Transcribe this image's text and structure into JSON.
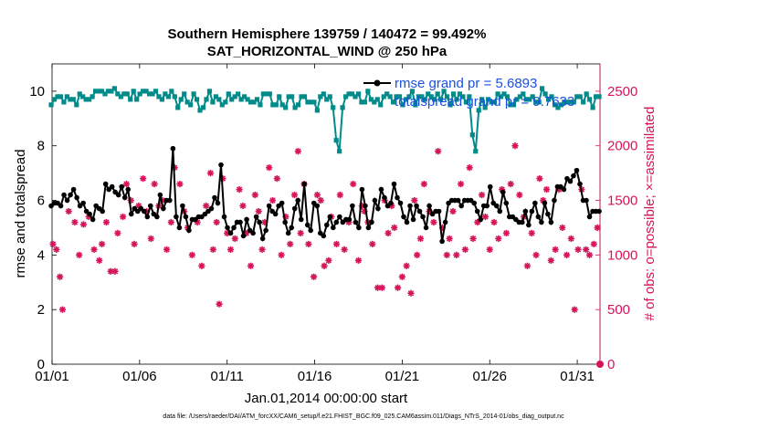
{
  "figure": {
    "title_line1": "Southern Hemisphere 139759 / 140472 = 99.492%",
    "title_line2": "SAT_HORIZONTAL_WIND @ 250 hPa",
    "footer": "data file: /Users/raeder/DAI/ATM_forcXX/CAM6_setup/f.e21.FHIST_BGC.f09_025.CAM6assim.011/Diags_NTrS_2014-01/obs_diag_output.nc"
  },
  "colors": {
    "rmse": "#000000",
    "spread": "#008b8b",
    "obs": "#d6135a",
    "legend_text": "#1a4fe0"
  },
  "chart_data": {
    "type": "line",
    "xlabel": "Jan.01,2014 00:00:00 start",
    "ylabel_left": "rmse and totalspread",
    "ylabel_right": "# of obs: o=possible; ×=assimilated",
    "xlim": [
      1,
      32.3
    ],
    "ylim_left": [
      0,
      11
    ],
    "ylim_right": [
      0,
      2750
    ],
    "x_ticks": [
      1,
      6,
      11,
      16,
      21,
      26,
      31
    ],
    "x_tick_labels": [
      "01/01",
      "01/06",
      "01/11",
      "01/16",
      "01/21",
      "01/26",
      "01/31"
    ],
    "y_ticks_left": [
      0,
      2,
      4,
      6,
      8,
      10
    ],
    "y_ticks_right": [
      0,
      500,
      1000,
      1500,
      2000,
      2500
    ],
    "legend": [
      "rmse grand pr = 5.6893",
      "totalspread grand pr = 9.7633"
    ],
    "legend_position": "top-right",
    "series": [
      {
        "name": "rmse",
        "axis": "left",
        "values": [
          5.8,
          5.9,
          5.9,
          5.8,
          6.2,
          6.0,
          6.2,
          6.4,
          6.1,
          5.8,
          5.9,
          5.6,
          5.5,
          5.3,
          5.8,
          5.7,
          5.6,
          6.6,
          6.4,
          6.5,
          6.3,
          6.2,
          6.5,
          6.1,
          6.4,
          5.5,
          5.7,
          5.6,
          5.7,
          5.6,
          5.4,
          5.8,
          5.5,
          5.4,
          6.2,
          5.7,
          6.0,
          6.0,
          7.9,
          5.4,
          5.0,
          5.8,
          5.4,
          4.9,
          5.3,
          5.3,
          5.4,
          5.4,
          5.5,
          5.6,
          5.7,
          6.1,
          5.9,
          7.3,
          5.4,
          5.0,
          4.8,
          5.0,
          5.2,
          5.2,
          4.7,
          5.3,
          4.9,
          4.8,
          5.4,
          5.2,
          4.6,
          4.9,
          5.8,
          5.6,
          5.5,
          5.8,
          5.9,
          5.2,
          4.8,
          5.0,
          5.7,
          6.0,
          5.3,
          6.6,
          5.1,
          4.9,
          5.9,
          5.8,
          4.8,
          4.7,
          5.1,
          5.4,
          5.0,
          5.2,
          5.4,
          5.2,
          5.3,
          5.3,
          5.8,
          5.2,
          5.0,
          6.4,
          5.8,
          5.0,
          5.2,
          6.0,
          5.7,
          6.4,
          6.1,
          5.8,
          5.9,
          6.6,
          6.1,
          5.9,
          5.4,
          5.2,
          5.8,
          5.3,
          5.8,
          5.6,
          5.4,
          5.0,
          5.8,
          5.5,
          5.6,
          5.6,
          4.5,
          5.2,
          5.9,
          6.0,
          6.0,
          6.0,
          5.8,
          6.0,
          6.0,
          6.0,
          5.9,
          5.6,
          5.3,
          5.8,
          5.8,
          6.5,
          5.9,
          5.8,
          5.6,
          6.3,
          5.9,
          5.4,
          5.4,
          5.3,
          5.2,
          5.2,
          5.6,
          5.1,
          5.6,
          5.9,
          5.4,
          5.2,
          5.9,
          5.5,
          5.2,
          6.0,
          6.5,
          6.5,
          6.4,
          6.8,
          6.7,
          6.9,
          7.1,
          6.6,
          6.0,
          6.0,
          5.4,
          5.6,
          5.6,
          5.6
        ]
      },
      {
        "name": "totalspread",
        "axis": "left",
        "values": [
          9.5,
          9.7,
          9.8,
          9.8,
          9.6,
          9.8,
          9.7,
          9.7,
          9.5,
          9.9,
          9.8,
          9.7,
          9.7,
          9.8,
          10.0,
          10.0,
          10.0,
          9.9,
          10.0,
          10.0,
          10.1,
          9.9,
          9.8,
          9.9,
          9.9,
          9.7,
          10.0,
          9.7,
          9.9,
          10.0,
          10.0,
          9.9,
          9.9,
          10.0,
          9.8,
          9.7,
          9.9,
          9.8,
          10.0,
          9.8,
          9.4,
          9.7,
          9.9,
          9.6,
          9.5,
          9.9,
          9.7,
          9.3,
          9.4,
          9.7,
          10.0,
          9.6,
          9.8,
          9.7,
          9.5,
          9.6,
          9.9,
          9.7,
          9.8,
          9.9,
          9.7,
          9.8,
          9.7,
          9.6,
          9.6,
          9.7,
          9.5,
          9.9,
          9.9,
          9.9,
          9.5,
          9.5,
          9.8,
          9.5,
          9.4,
          9.8,
          9.8,
          9.4,
          9.5,
          9.8,
          9.8,
          9.6,
          9.6,
          9.6,
          9.3,
          9.8,
          9.9,
          9.7,
          9.8,
          9.4,
          8.2,
          7.8,
          9.4,
          9.8,
          9.9,
          9.9,
          9.8,
          9.9,
          9.6,
          9.6,
          10.0,
          9.7,
          9.6,
          9.7,
          9.5,
          9.8,
          9.9,
          9.8,
          9.6,
          9.8,
          9.8,
          9.5,
          9.7,
          9.8,
          10.0,
          9.5,
          9.8,
          9.8,
          9.7,
          9.9,
          9.8,
          9.7,
          9.9,
          9.7,
          10.0,
          9.8,
          9.5,
          9.9,
          9.7,
          9.9,
          9.8,
          9.6,
          9.8,
          8.4,
          7.8,
          9.3,
          9.7,
          9.4,
          9.7,
          9.6,
          9.6,
          9.9,
          9.8,
          9.9,
          9.8,
          9.5,
          9.5,
          9.7,
          9.8,
          9.9,
          9.7,
          9.7,
          9.8,
          9.6,
          9.6,
          10.1,
          9.9,
          9.7,
          9.8,
          9.5,
          9.4,
          9.5,
          9.6,
          9.6,
          9.6,
          9.6,
          9.8,
          9.8,
          9.6,
          9.9,
          9.7,
          9.4,
          9.8,
          9.8
        ]
      },
      {
        "name": "obs",
        "axis": "right",
        "days": [
          1.05,
          1.25,
          1.45,
          1.6,
          1.95,
          2.3,
          2.55,
          2.8,
          3.1,
          3.4,
          3.7,
          3.85,
          4.1,
          4.35,
          4.6,
          4.75,
          5.05,
          5.25,
          5.5,
          5.7,
          5.95,
          6.2,
          6.4,
          6.65,
          6.85,
          7.1,
          7.3,
          7.55,
          7.8,
          8.0,
          8.3,
          8.55,
          8.75,
          9.0,
          9.3,
          9.55,
          9.8,
          10.05,
          10.2,
          10.4,
          10.55,
          10.75,
          11.0,
          11.2,
          11.45,
          11.7,
          11.9,
          12.1,
          12.35,
          12.6,
          12.8,
          13.0,
          13.15,
          13.4,
          13.6,
          13.85,
          14.1,
          14.35,
          14.6,
          14.85,
          15.05,
          15.2,
          15.4,
          15.65,
          15.95,
          16.15,
          16.35,
          16.55,
          16.8,
          16.95,
          17.25,
          17.45,
          17.7,
          17.95,
          18.2,
          18.5,
          18.7,
          18.85,
          19.05,
          19.3,
          19.6,
          19.85,
          20.0,
          20.2,
          20.4,
          20.55,
          20.75,
          21.0,
          21.25,
          21.5,
          21.7,
          21.85,
          22.05,
          22.25,
          22.55,
          22.8,
          23.05,
          23.3,
          23.55,
          23.7,
          23.9,
          24.1,
          24.35,
          24.6,
          24.85,
          25.05,
          25.3,
          25.55,
          25.75,
          26.0,
          26.25,
          26.5,
          26.7,
          26.95,
          27.2,
          27.45,
          27.7,
          27.95,
          28.15,
          28.4,
          28.65,
          28.85,
          29.05,
          29.25,
          29.5,
          29.75,
          29.95,
          30.15,
          30.4,
          30.65,
          30.85,
          31.05,
          31.25,
          31.5,
          31.7,
          31.95,
          32.15
        ],
        "values": [
          1100,
          1050,
          800,
          500,
          1400,
          1300,
          1000,
          1280,
          1350,
          1050,
          950,
          1100,
          1300,
          850,
          850,
          1200,
          1350,
          1650,
          1500,
          1100,
          1450,
          1700,
          1400,
          1150,
          1650,
          1450,
          1500,
          1050,
          1300,
          1800,
          1650,
          1400,
          1250,
          1000,
          1300,
          900,
          1450,
          1750,
          1050,
          1300,
          550,
          1700,
          1200,
          1050,
          1150,
          1600,
          1450,
          1200,
          900,
          1550,
          1400,
          1050,
          1300,
          1800,
          1500,
          1700,
          1000,
          1350,
          1100,
          1550,
          1950,
          1200,
          1650,
          1100,
          800,
          1550,
          1500,
          900,
          950,
          1350,
          1100,
          1550,
          1050,
          1300,
          1650,
          950,
          1450,
          1400,
          1300,
          1100,
          700,
          700,
          1500,
          1200,
          1450,
          1250,
          700,
          800,
          900,
          650,
          1500,
          1000,
          1150,
          1650,
          1400,
          1300,
          1950,
          1250,
          1000,
          1150,
          1400,
          1000,
          1650,
          1050,
          1800,
          1150,
          1300,
          1550,
          1350,
          1050,
          1300,
          1150,
          1600,
          1200,
          1650,
          2000,
          1550,
          1350,
          900,
          1200,
          1000,
          1700,
          1500,
          1600,
          950,
          1050,
          1600,
          1250,
          1000,
          1150,
          500,
          1050,
          1600,
          1050,
          1000,
          1100,
          1250
        ]
      }
    ]
  }
}
